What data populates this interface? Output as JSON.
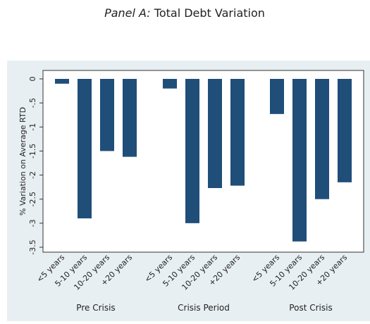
{
  "chart_data": {
    "type": "bar",
    "title_prefix": "Panel A:",
    "title": "Total Debt Variation",
    "y_label": "% Variation on Average RTD",
    "categories": [
      "Pre Crisis",
      "Crisis Period",
      "Post Crisis"
    ],
    "series": [
      {
        "name": "<5 years",
        "color": "#1f4e79",
        "values": [
          -0.1,
          -0.2,
          -0.73
        ]
      },
      {
        "name": "5-10 years",
        "color": "#1f4e79",
        "values": [
          -2.9,
          -3.0,
          -3.38
        ]
      },
      {
        "name": "10-20 years",
        "color": "#1f4e79",
        "values": [
          -1.5,
          -2.27,
          -2.5
        ]
      },
      {
        "name": "+20 years",
        "color": "#1f4e79",
        "values": [
          -1.62,
          -2.22,
          -2.15
        ]
      }
    ],
    "ylim": [
      -3.5,
      0
    ],
    "yticks": [
      0,
      {
        "value": -0.5,
        "label": "-.5"
      },
      -1,
      -1.5,
      -2,
      -2.5,
      -3,
      -3.5
    ]
  }
}
